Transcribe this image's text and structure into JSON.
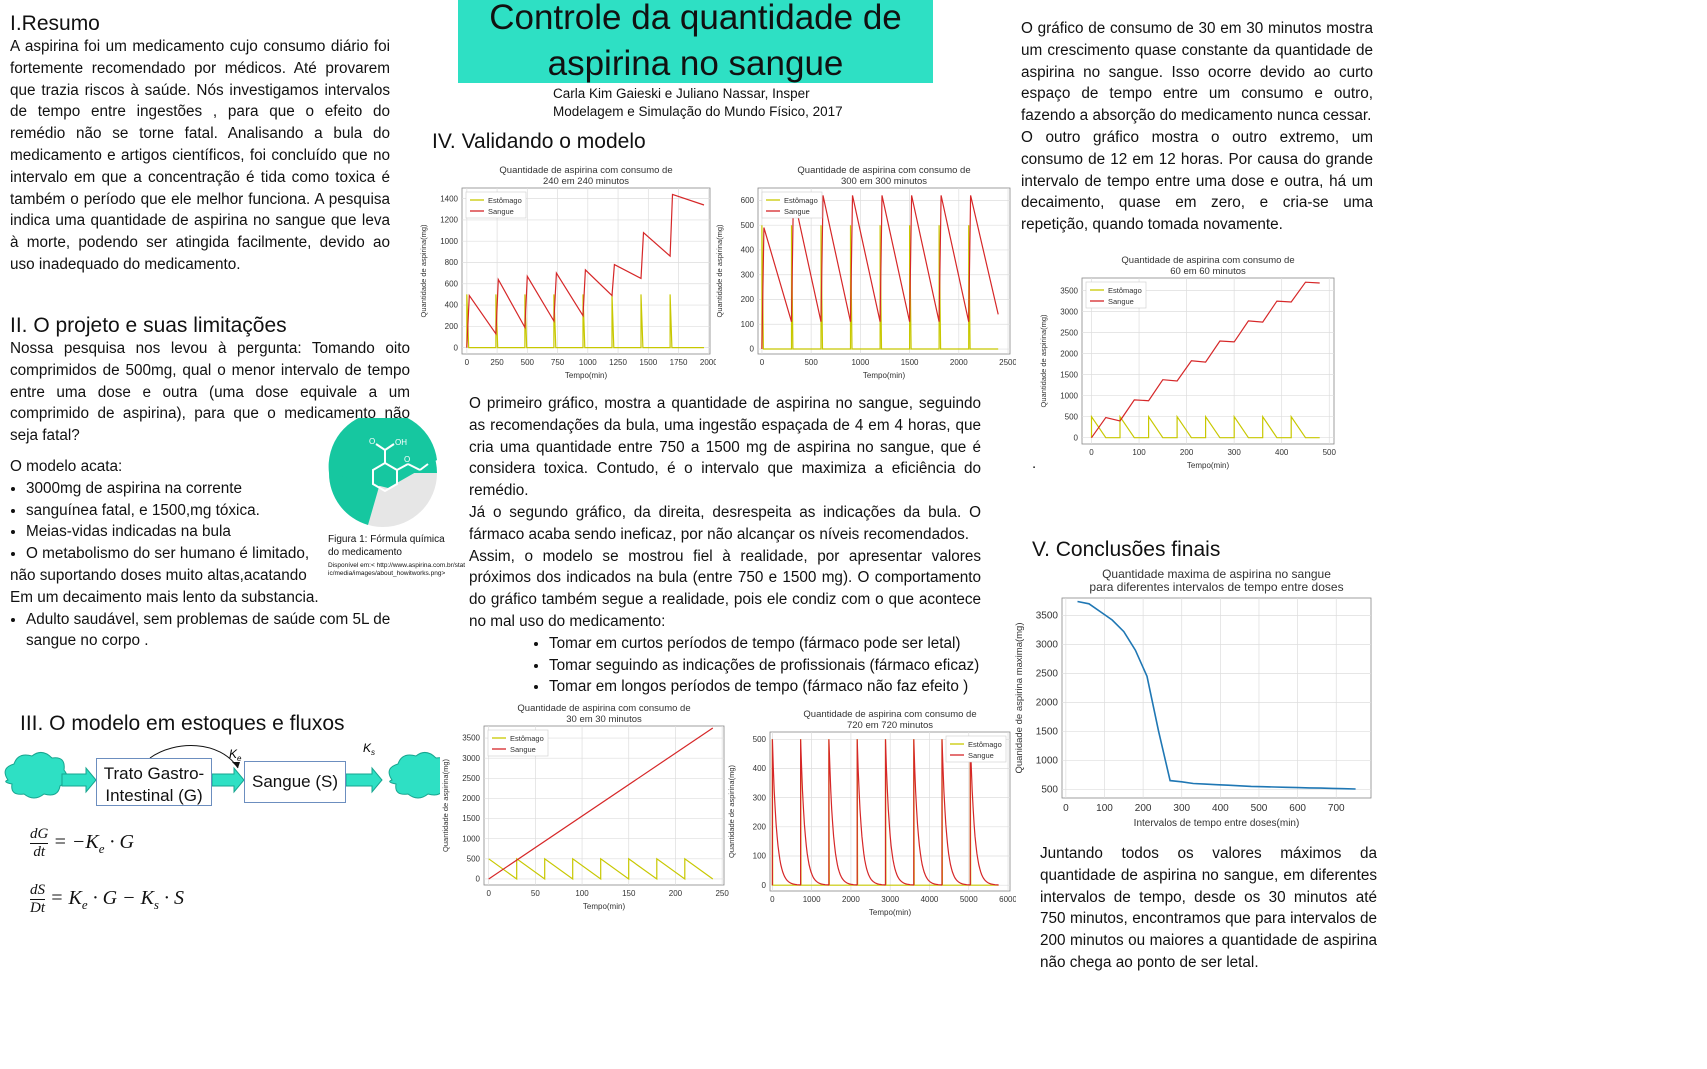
{
  "title": "Controle da quantidade de aspirina no sangue",
  "authors": "Carla Kim Gaieski e Juliano Nassar, Insper",
  "course": "Modelagem e Simulação do Mundo Físico, 2017",
  "s1": {
    "title": "I.Resumo",
    "text": "A aspirina foi um medicamento cujo consumo diário foi fortemente recomendado por médicos. Até provarem que trazia riscos à saúde. Nós investigamos intervalos de tempo entre ingestões , para que o efeito do remédio não se torne fatal. Analisando a bula do medicamento e artigos científicos, foi concluído que no intervalo em que a concentração é tida como toxica é também o período que ele melhor funciona. A pesquisa indica uma quantidade de aspirina no sangue que leva à morte, podendo ser atingida facilmente, devido ao uso inadequado do medicamento."
  },
  "s2": {
    "title": "II. O projeto e suas limitações",
    "text": "Nossa pesquisa nos levou à pergunta: Tomando oito comprimidos de 500mg, qual o menor intervalo de tempo entre uma dose e outra (uma dose equivale a um comprimido de aspirina), para que o medicamento não seja fatal?",
    "model_intro": "O modelo acata:",
    "bullets": [
      "3000mg de aspirina na corrente",
      "sanguínea fatal, e 1500,mg  tóxica.",
      "Meias-vidas indicadas na bula",
      "O metabolismo do ser humano é limitado,"
    ],
    "cont1": "não suportando doses muito altas,acatando",
    "cont2": "Em um decaimento mais lento da substancia.",
    "bullet_last": "Adulto saudável, sem problemas de saúde com 5L de sangue no corpo .",
    "fig_caption": "Figura 1: Fórmula química do medicamento",
    "fig_source": "Disponível em:< http://www.aspirina.com.br/static/media/images/about_howitworks.png>",
    "fig_oh": "OH",
    "fig_o1": "O",
    "fig_o2": "O"
  },
  "s3": {
    "title": "III. O modelo em estoques e fluxos",
    "box_g": "Trato Gastro-Intestinal (G)",
    "box_s": "Sangue (S)",
    "ke": "K",
    "ke_sub": "e",
    "ks": "K",
    "ks_sub": "s",
    "eq1_num": "dG",
    "eq1_den": "dt",
    "eq1_rhs": "= −K",
    "eq1_sub": "e",
    "eq1_end": "· G",
    "eq2_num": "dS",
    "eq2_den": "Dt",
    "eq2_rhs": "= K",
    "eq2_sub1": "e",
    "eq2_mid": "· G − K",
    "eq2_sub2": "s",
    "eq2_end": "· S"
  },
  "s4": {
    "title": "IV. Validando o modelo",
    "p1": "O primeiro gráfico, mostra a quantidade de aspirina no sangue, seguindo as recomendações da bula, uma ingestão espaçada de 4 em 4 horas, que cria uma quantidade entre 750 a 1500 mg de aspirina no sangue, que é considera toxica. Contudo, é o intervalo que maximiza a eficiência do remédio.",
    "p2": "Já o segundo gráfico, da direita, desrespeita as indicações da bula. O fármaco acaba sendo ineficaz, por não alcançar os níveis recomendados.",
    "p3": "Assim, o modelo se mostrou fiel à realidade, por apresentar valores próximos dos indicados na bula (entre 750 e 1500 mg). O comportamento do gráfico também segue a realidade, pois ele condiz com o que acontece no mal uso do medicamento:",
    "bullets": [
      "Tomar em curtos períodos de tempo (fármaco pode ser letal)",
      "Tomar seguindo as indicações de profissionais (fármaco eficaz)",
      "Tomar em longos períodos de tempo (fármaco não faz efeito )"
    ]
  },
  "right": {
    "p1": "O gráfico de consumo de 30 em 30 minutos mostra um crescimento quase constante da quantidade de aspirina no sangue. Isso ocorre devido ao curto espaço de tempo entre um consumo e outro, fazendo a absorção do medicamento nunca cessar.",
    "p2": "O outro gráfico mostra o outro extremo, um consumo de 12 em 12 horas. Por causa do grande intervalo de tempo entre uma dose e outra, há um decaimento, quase em zero, e cria-se uma repetição, quando tomada novamente.",
    "dot": "."
  },
  "s5": {
    "title": "V. Conclusões finais",
    "text": "Juntando todos os valores máximos da quantidade de aspirina no sangue, em diferentes intervalos de tempo, desde os 30 minutos até 750 minutos, encontramos que para intervalos de 200 minutos ou maiores a quantidade de aspirina não chega ao ponto de ser letal."
  },
  "colors": {
    "stomach": "#c8c800",
    "blood": "#d62728",
    "line": "#1f77b4",
    "banner": "#2ee0c4"
  },
  "chart_data": [
    {
      "id": "c240",
      "type": "line",
      "title": "Quantidade de aspirina com consumo de|240 em 240 minutos",
      "xlabel": "Tempo(min)",
      "ylabel": "Quantidade de aspirina(mg)",
      "xlim": [
        -40,
        2010
      ],
      "ylim": [
        -60,
        1500
      ],
      "xticks": [
        0,
        250,
        500,
        750,
        1000,
        1250,
        1500,
        1750,
        2000
      ],
      "yticks": [
        0,
        200,
        400,
        600,
        800,
        1000,
        1200,
        1400
      ],
      "legend": "top-left",
      "series": [
        {
          "name": "Estômago",
          "color": "#c8c800",
          "x": [
            0,
            0,
            15,
            240,
            240,
            255,
            480,
            480,
            495,
            720,
            720,
            735,
            960,
            960,
            975,
            1200,
            1200,
            1215,
            1440,
            1440,
            1455,
            1680,
            1680,
            1695,
            1960
          ],
          "y": [
            0,
            500,
            0,
            0,
            500,
            0,
            0,
            500,
            0,
            0,
            500,
            0,
            0,
            500,
            0,
            0,
            500,
            0,
            0,
            500,
            0,
            0,
            500,
            0,
            0
          ]
        },
        {
          "name": "Sangue",
          "color": "#d62728",
          "x": [
            0,
            20,
            240,
            260,
            480,
            500,
            720,
            740,
            960,
            980,
            1200,
            1220,
            1440,
            1460,
            1680,
            1700,
            1960
          ],
          "y": [
            0,
            490,
            130,
            640,
            190,
            670,
            250,
            700,
            300,
            730,
            490,
            780,
            650,
            1080,
            860,
            1440,
            1340
          ]
        }
      ]
    },
    {
      "id": "c300",
      "type": "line",
      "title": "Quantidade de aspirina com consumo de|300 em 300 minutos",
      "xlabel": "Tempo(min)",
      "ylabel": "Quantidade de aspirina(mg)",
      "xlim": [
        -40,
        2520
      ],
      "ylim": [
        -20,
        650
      ],
      "xticks": [
        0,
        500,
        1000,
        1500,
        2000,
        2500
      ],
      "yticks": [
        0,
        100,
        200,
        300,
        400,
        500,
        600
      ],
      "legend": "top-left",
      "series": [
        {
          "name": "Estômago",
          "color": "#c8c800",
          "x": [
            0,
            0,
            15,
            300,
            300,
            315,
            600,
            600,
            615,
            900,
            900,
            915,
            1200,
            1200,
            1215,
            1500,
            1500,
            1515,
            1800,
            1800,
            1815,
            2100,
            2100,
            2115,
            2400
          ],
          "y": [
            0,
            500,
            0,
            0,
            500,
            0,
            0,
            500,
            0,
            0,
            500,
            0,
            0,
            500,
            0,
            0,
            500,
            0,
            0,
            500,
            0,
            0,
            500,
            0,
            0
          ]
        },
        {
          "name": "Sangue",
          "color": "#d62728",
          "x": [
            0,
            20,
            300,
            320,
            600,
            620,
            900,
            920,
            1200,
            1220,
            1500,
            1520,
            1800,
            1820,
            2100,
            2120,
            2400
          ],
          "y": [
            0,
            490,
            110,
            620,
            110,
            620,
            110,
            620,
            110,
            620,
            110,
            620,
            110,
            620,
            110,
            620,
            140
          ]
        }
      ]
    },
    {
      "id": "c60",
      "type": "line",
      "title": "Quantidade de aspirina com consumo de|60 em 60 minutos",
      "xlabel": "Tempo(min)",
      "ylabel": "Quantidade de aspirina(mg)",
      "xlim": [
        -20,
        510
      ],
      "ylim": [
        -150,
        3800
      ],
      "xticks": [
        0,
        100,
        200,
        300,
        400,
        500
      ],
      "yticks": [
        0,
        500,
        1000,
        1500,
        2000,
        2500,
        3000,
        3500
      ],
      "legend": "top-left",
      "series": [
        {
          "name": "Estômago",
          "color": "#c8c800",
          "x": [
            0,
            0,
            30,
            60,
            60,
            90,
            120,
            120,
            150,
            180,
            180,
            210,
            240,
            240,
            270,
            300,
            300,
            330,
            360,
            360,
            390,
            420,
            420,
            450,
            480
          ],
          "y": [
            0,
            500,
            0,
            0,
            500,
            0,
            0,
            500,
            0,
            0,
            500,
            0,
            0,
            500,
            0,
            0,
            500,
            0,
            0,
            500,
            0,
            0,
            500,
            0,
            0
          ]
        },
        {
          "name": "Sangue",
          "color": "#d62728",
          "x": [
            0,
            30,
            60,
            90,
            120,
            150,
            180,
            210,
            240,
            270,
            300,
            330,
            360,
            390,
            420,
            450,
            480
          ],
          "y": [
            0,
            480,
            400,
            900,
            880,
            1380,
            1350,
            1830,
            1800,
            2300,
            2280,
            2780,
            2750,
            3250,
            3230,
            3700,
            3680
          ]
        }
      ]
    },
    {
      "id": "c30",
      "type": "line",
      "title": "Quantidade de aspirina com consumo de|30 em 30 minutos",
      "xlabel": "Tempo(min)",
      "ylabel": "Quantidade de aspirina(mg)",
      "xlim": [
        -5,
        252
      ],
      "ylim": [
        -150,
        3800
      ],
      "xticks": [
        0,
        50,
        100,
        150,
        200,
        250
      ],
      "yticks": [
        0,
        500,
        1000,
        1500,
        2000,
        2500,
        3000,
        3500
      ],
      "legend": "top-left",
      "series": [
        {
          "name": "Estômago",
          "color": "#c8c800",
          "x": [
            0,
            30,
            30,
            60,
            60,
            90,
            90,
            120,
            120,
            150,
            150,
            180,
            180,
            210,
            210,
            240
          ],
          "y": [
            500,
            0,
            500,
            0,
            500,
            0,
            500,
            0,
            500,
            0,
            500,
            0,
            500,
            0,
            500,
            0
          ]
        },
        {
          "name": "Sangue",
          "color": "#d62728",
          "x": [
            0,
            240
          ],
          "y": [
            0,
            3750
          ]
        }
      ]
    },
    {
      "id": "c720",
      "type": "line",
      "title": "Quantidade de aspirina com consumo de|720 em 720 minutos",
      "xlabel": "Tempo(min)",
      "ylabel": "Quantidade de aspirina(mg)",
      "xlim": [
        -60,
        6050
      ],
      "ylim": [
        -20,
        525
      ],
      "xticks": [
        0,
        1000,
        2000,
        3000,
        4000,
        5000,
        6000
      ],
      "yticks": [
        0,
        100,
        200,
        300,
        400,
        500
      ],
      "legend": "top-right",
      "series": [
        {
          "name": "Estômago",
          "color": "#c8c800",
          "x": [
            0,
            0,
            10,
            720,
            720,
            730,
            1440,
            1440,
            1450,
            2160,
            2160,
            2170,
            2880,
            2880,
            2890,
            3600,
            3600,
            3610,
            4320,
            4320,
            4330,
            5040,
            5040,
            5050,
            5760
          ],
          "y": [
            0,
            500,
            0,
            0,
            500,
            0,
            0,
            500,
            0,
            0,
            500,
            0,
            0,
            500,
            0,
            0,
            500,
            0,
            0,
            500,
            0,
            0,
            500,
            0,
            0
          ]
        },
        {
          "name": "Sangue",
          "color": "#d62728",
          "decay": true,
          "x": [
            0,
            720,
            1440,
            2160,
            2880,
            3600,
            4320,
            5040
          ],
          "y": [
            500,
            500,
            500,
            500,
            500,
            500,
            500,
            500
          ],
          "x_end": 5760
        }
      ]
    },
    {
      "id": "cmax",
      "type": "line",
      "title": "Quantidade maxima de aspirina no sangue|para diferentes intervalos de tempo entre doses",
      "xlabel": "Intervalos de tempo entre doses(min)",
      "ylabel": "Quanidade de aspirina maxima(mg)",
      "xlim": [
        -10,
        790
      ],
      "ylim": [
        350,
        3800
      ],
      "xticks": [
        0,
        100,
        200,
        300,
        400,
        500,
        600,
        700
      ],
      "yticks": [
        500,
        1000,
        1500,
        2000,
        2500,
        3000,
        3500
      ],
      "legend": "none",
      "series": [
        {
          "name": "",
          "color": "#1f77b4",
          "x": [
            30,
            60,
            90,
            120,
            150,
            180,
            210,
            240,
            270,
            300,
            330,
            360,
            390,
            420,
            450,
            480,
            510,
            540,
            570,
            600,
            630,
            660,
            690,
            720,
            750
          ],
          "y": [
            3740,
            3700,
            3560,
            3420,
            3220,
            2900,
            2450,
            1500,
            650,
            630,
            600,
            590,
            580,
            570,
            560,
            550,
            545,
            540,
            535,
            530,
            525,
            520,
            515,
            510,
            505
          ]
        }
      ]
    }
  ]
}
